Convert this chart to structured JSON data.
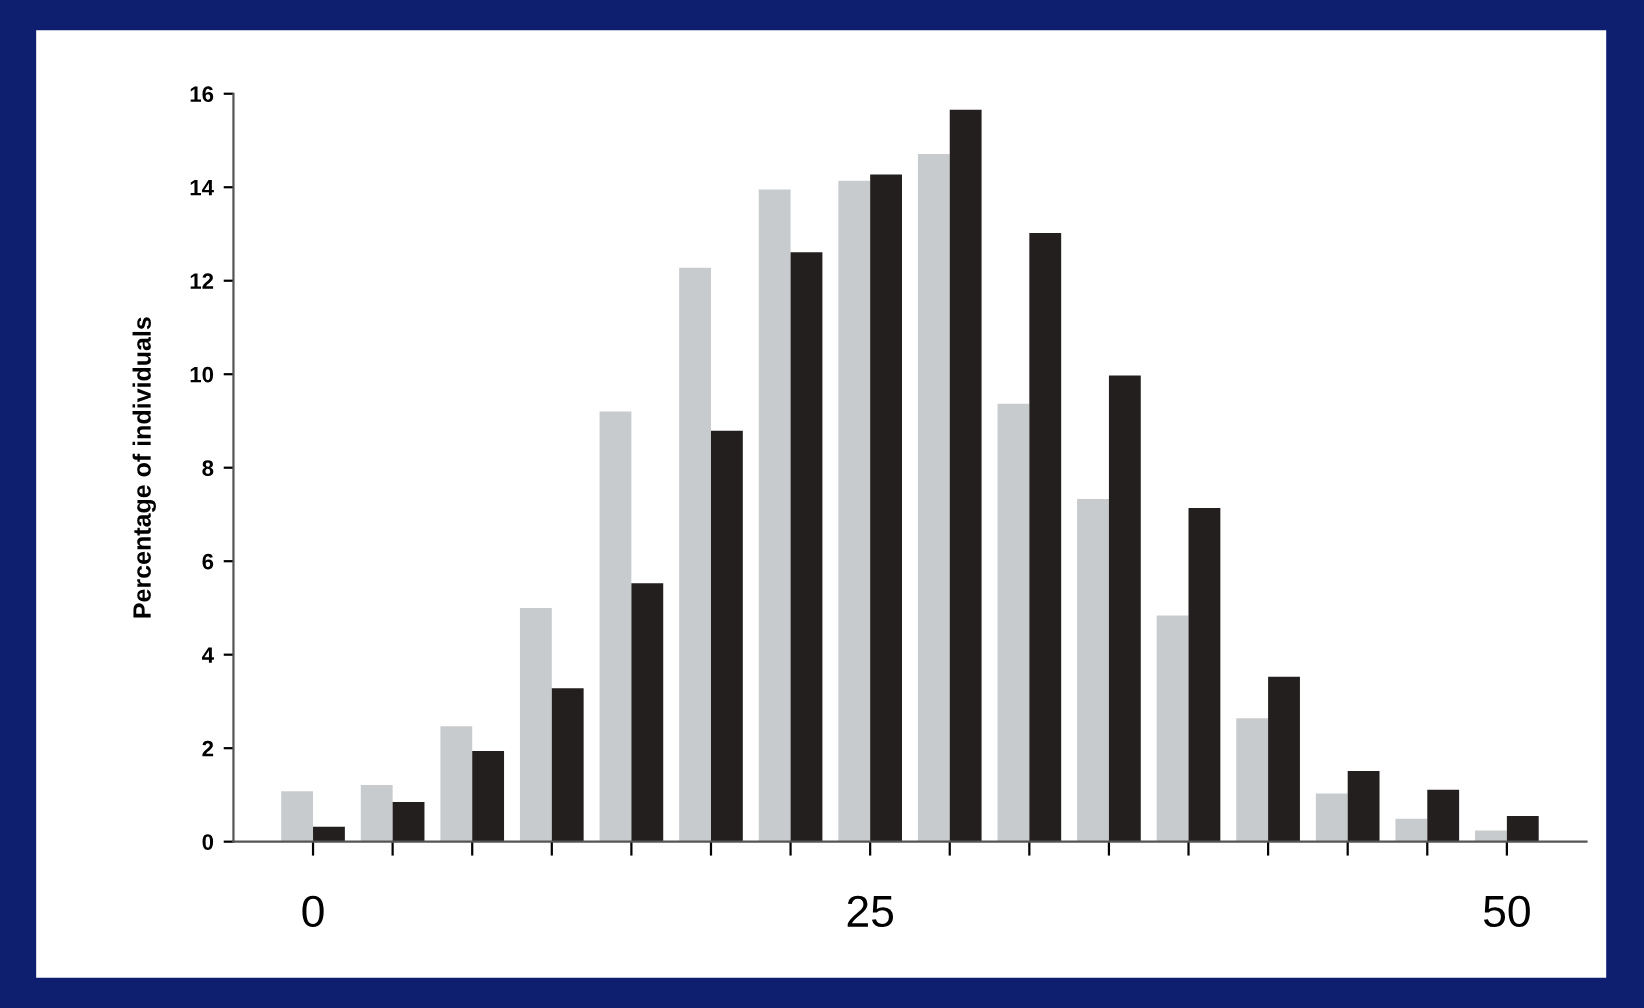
{
  "chart_data": {
    "type": "bar",
    "ylabel": "Percentage of individuals",
    "categories": [
      "0",
      null,
      null,
      null,
      null,
      null,
      null,
      "25",
      null,
      null,
      null,
      null,
      null,
      null,
      null,
      "50"
    ],
    "series": [
      {
        "color": "#c8cbce",
        "values": [
          1.08,
          1.21,
          2.47,
          5.0,
          9.2,
          12.28,
          13.95,
          14.14,
          14.71,
          9.37,
          7.33,
          4.84,
          2.64,
          1.03,
          0.49,
          0.24
        ]
      },
      {
        "color": "#231f1e",
        "values": [
          0.32,
          0.85,
          1.94,
          3.28,
          5.53,
          8.79,
          12.61,
          14.27,
          15.66,
          13.02,
          9.97,
          7.14,
          3.53,
          1.51,
          1.11,
          0.55
        ]
      }
    ],
    "ylim": [
      0,
      16
    ],
    "yticks": [
      0,
      2,
      4,
      6,
      8,
      10,
      12,
      14,
      16
    ]
  }
}
